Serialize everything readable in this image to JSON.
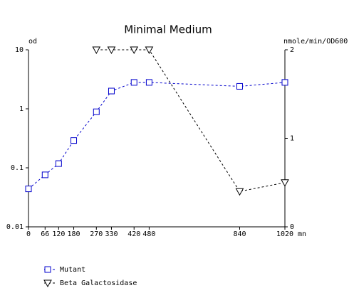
{
  "chart_data": {
    "type": "line",
    "title": "Minimal Medium",
    "ylabel": "od",
    "y2label": "nmole/min/OD600",
    "xlabel": "mn",
    "x": [
      0,
      66,
      120,
      180,
      270,
      330,
      420,
      480,
      840,
      1020
    ],
    "xlim": [
      0,
      1020
    ],
    "xticks": [
      0,
      66,
      120,
      180,
      270,
      330,
      420,
      480,
      840,
      1020
    ],
    "ylim": [
      0.01,
      10
    ],
    "yticks": [
      0.01,
      0.1,
      1,
      10
    ],
    "yscale": "log",
    "y2lim": [
      0,
      2
    ],
    "y2ticks": [
      0,
      1,
      2
    ],
    "grid": false,
    "legend": "bottom-left",
    "series": [
      {
        "name": "Mutant",
        "color": "#0000cc",
        "marker": "square",
        "values": [
          0.044,
          0.076,
          0.118,
          0.29,
          0.89,
          2.0,
          2.8,
          2.8,
          2.4,
          2.8
        ]
      },
      {
        "name": "Beta Galactosidase",
        "color": "#000000",
        "marker": "triangle-down",
        "axis": "y2",
        "values": [
          null,
          null,
          null,
          null,
          2,
          2,
          2,
          2,
          0.4,
          0.5
        ]
      }
    ]
  }
}
